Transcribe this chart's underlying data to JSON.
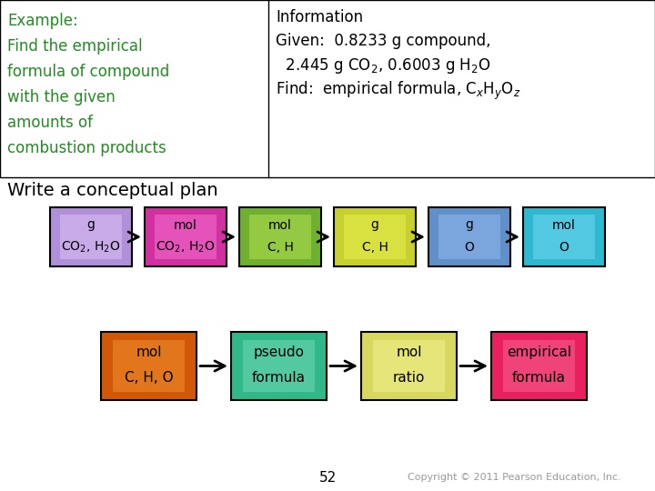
{
  "title_left_color": "#228B22",
  "info_title": "Information",
  "info_given1": "Given:  0.8233 g compound,",
  "conceptual_plan": "Write a conceptual plan",
  "row1_boxes": [
    {
      "line1": "g",
      "line2": "CO₂, H₂O",
      "color1": "#b090d8",
      "color2": "#dcc0f8"
    },
    {
      "line1": "mol",
      "line2": "CO₂, H₂O",
      "color1": "#d030a0",
      "color2": "#f870d0"
    },
    {
      "line1": "mol",
      "line2": "C, H",
      "color1": "#70b030",
      "color2": "#b0e050"
    },
    {
      "line1": "g",
      "line2": "C, H",
      "color1": "#c8d030",
      "color2": "#e8f050"
    },
    {
      "line1": "g",
      "line2": "O",
      "color1": "#6090c8",
      "color2": "#90b8f0"
    },
    {
      "line1": "mol",
      "line2": "O",
      "color1": "#30b8d0",
      "color2": "#70d8f0"
    }
  ],
  "row2_boxes": [
    {
      "line1": "mol",
      "line2": "C, H, O",
      "color1": "#d05808",
      "color2": "#f09030"
    },
    {
      "line1": "pseudo",
      "line2": "formula",
      "color1": "#30b888",
      "color2": "#70d8b8"
    },
    {
      "line1": "mol",
      "line2": "ratio",
      "color1": "#d8d860",
      "color2": "#f0f090"
    },
    {
      "line1": "empirical",
      "line2": "formula",
      "color1": "#e82060",
      "color2": "#f86090"
    }
  ],
  "bg_color": "#ffffff",
  "page_num": "52",
  "copyright": "Copyright © 2011 Pearson Education, Inc."
}
